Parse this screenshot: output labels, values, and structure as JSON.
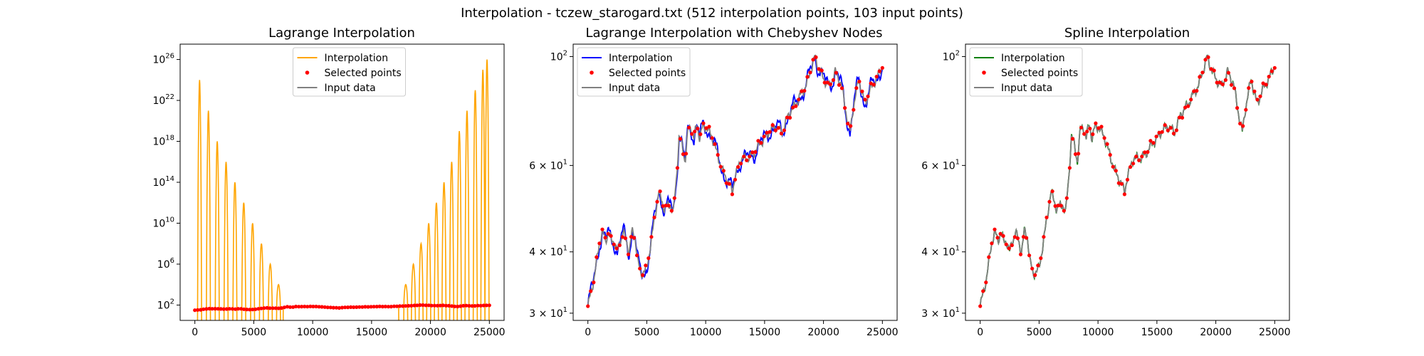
{
  "figure": {
    "title": "Interpolation - tczew_starogard.txt (512 interpolation points, 103 input points)"
  },
  "legend": {
    "interpolation": "Interpolation",
    "selected": "Selected points",
    "input": "Input data"
  },
  "colors": {
    "lagrange": "#ffa500",
    "chebyshev": "#0000ff",
    "spline": "#008000",
    "input": "#808080",
    "points": "#ff0000"
  },
  "chart_data": [
    {
      "type": "line",
      "title": "Lagrange Interpolation",
      "yscale": "log",
      "xlim": [
        -1250,
        26250
      ],
      "ylim": [
        3.16,
        3.16e+27
      ],
      "xticks": [
        0,
        5000,
        10000,
        15000,
        20000,
        25000
      ],
      "yticks": [
        {
          "value": 1e+26,
          "mant": "10",
          "exp": "26"
        },
        {
          "value": 1e+22,
          "mant": "10",
          "exp": "22"
        },
        {
          "value": 1e+18,
          "mant": "10",
          "exp": "18"
        },
        {
          "value": 100000000000000.0,
          "mant": "10",
          "exp": "14"
        },
        {
          "value": 10000000000.0,
          "mant": "10",
          "exp": "10"
        },
        {
          "value": 1000000.0,
          "mant": "10",
          "exp": "6"
        },
        {
          "value": 100.0,
          "mant": "10",
          "exp": "2"
        }
      ],
      "legend_position": "upper center",
      "oscillation_peaks_left": [
        {
          "x": 400,
          "y": 1e+24
        },
        {
          "x": 1150,
          "y": 1e+21
        },
        {
          "x": 1900,
          "y": 1e+18
        },
        {
          "x": 2650,
          "y": 1e+16
        },
        {
          "x": 3400,
          "y": 100000000000000.0
        },
        {
          "x": 4150,
          "y": 1000000000000.0
        },
        {
          "x": 4900,
          "y": 10000000000.0
        },
        {
          "x": 5650,
          "y": 100000000.0
        },
        {
          "x": 6400,
          "y": 1000000.0
        },
        {
          "x": 7100,
          "y": 10000.0
        }
      ],
      "oscillation_peaks_right": [
        {
          "x": 17900,
          "y": 10000.0
        },
        {
          "x": 18550,
          "y": 1000000.0
        },
        {
          "x": 19200,
          "y": 100000000.0
        },
        {
          "x": 19850,
          "y": 10000000000.0
        },
        {
          "x": 20500,
          "y": 1000000000000.0
        },
        {
          "x": 21150,
          "y": 100000000000000.0
        },
        {
          "x": 21800,
          "y": 1e+16
        },
        {
          "x": 22450,
          "y": 1e+19
        },
        {
          "x": 23100,
          "y": 1e+21
        },
        {
          "x": 23800,
          "y": 1e+23
        },
        {
          "x": 24450,
          "y": 1e+25
        },
        {
          "x": 24800,
          "y": 1e+26
        }
      ]
    },
    {
      "type": "line",
      "title": "Lagrange Interpolation with Chebyshev Nodes",
      "yscale": "log",
      "xlim": [
        -1250,
        26250
      ],
      "ylim": [
        29.0,
        106.0
      ],
      "xticks": [
        0,
        5000,
        10000,
        15000,
        20000,
        25000
      ],
      "yticks": [
        {
          "value": 100,
          "mant": "10",
          "exp": "2"
        },
        {
          "value": 60,
          "mant": "6 × 10",
          "exp": "1"
        },
        {
          "value": 40,
          "mant": "4 × 10",
          "exp": "1"
        },
        {
          "value": 30,
          "mant": "3 × 10",
          "exp": "1"
        }
      ],
      "legend_position": "upper left"
    },
    {
      "type": "line",
      "title": "Spline Interpolation",
      "yscale": "log",
      "xlim": [
        -1250,
        26250
      ],
      "ylim": [
        29.0,
        106.0
      ],
      "xticks": [
        0,
        5000,
        10000,
        15000,
        20000,
        25000
      ],
      "yticks": [
        {
          "value": 100,
          "mant": "10",
          "exp": "2"
        },
        {
          "value": 60,
          "mant": "6 × 10",
          "exp": "1"
        },
        {
          "value": 40,
          "mant": "4 × 10",
          "exp": "1"
        },
        {
          "value": 30,
          "mant": "3 × 10",
          "exp": "1"
        }
      ],
      "legend_position": "upper left"
    }
  ],
  "profile": {
    "x": [
      0,
      500,
      1000,
      1250,
      1500,
      1750,
      2000,
      2250,
      2500,
      2750,
      3000,
      3250,
      3500,
      3750,
      4000,
      4250,
      4500,
      5000,
      5500,
      6000,
      6500,
      7000,
      7250,
      7500,
      7750,
      8000,
      8250,
      8500,
      8750,
      9000,
      9250,
      9500,
      9750,
      10000,
      10500,
      11000,
      11500,
      12000,
      12250,
      12500,
      13000,
      13500,
      14000,
      14500,
      15000,
      15500,
      16000,
      16500,
      17000,
      17500,
      18000,
      18500,
      19000,
      19250,
      19500,
      19750,
      20000,
      20500,
      21000,
      21500,
      22000,
      22250,
      22500,
      23000,
      23500,
      24000,
      24500,
      25000
    ],
    "y": [
      31,
      35,
      42,
      44,
      42,
      44,
      42,
      42,
      40,
      42,
      44,
      42,
      40,
      44,
      43,
      38,
      36,
      37,
      44,
      53,
      49,
      50,
      48,
      56,
      69,
      66,
      61,
      71,
      72,
      68,
      73,
      68,
      72,
      72,
      69,
      63,
      58,
      55,
      53,
      57,
      62,
      62,
      63,
      66,
      68,
      71,
      72,
      70,
      76,
      79,
      83,
      87,
      95,
      100,
      96,
      93,
      90,
      87,
      93,
      88,
      75,
      70,
      78,
      90,
      80,
      86,
      90,
      96
    ]
  }
}
